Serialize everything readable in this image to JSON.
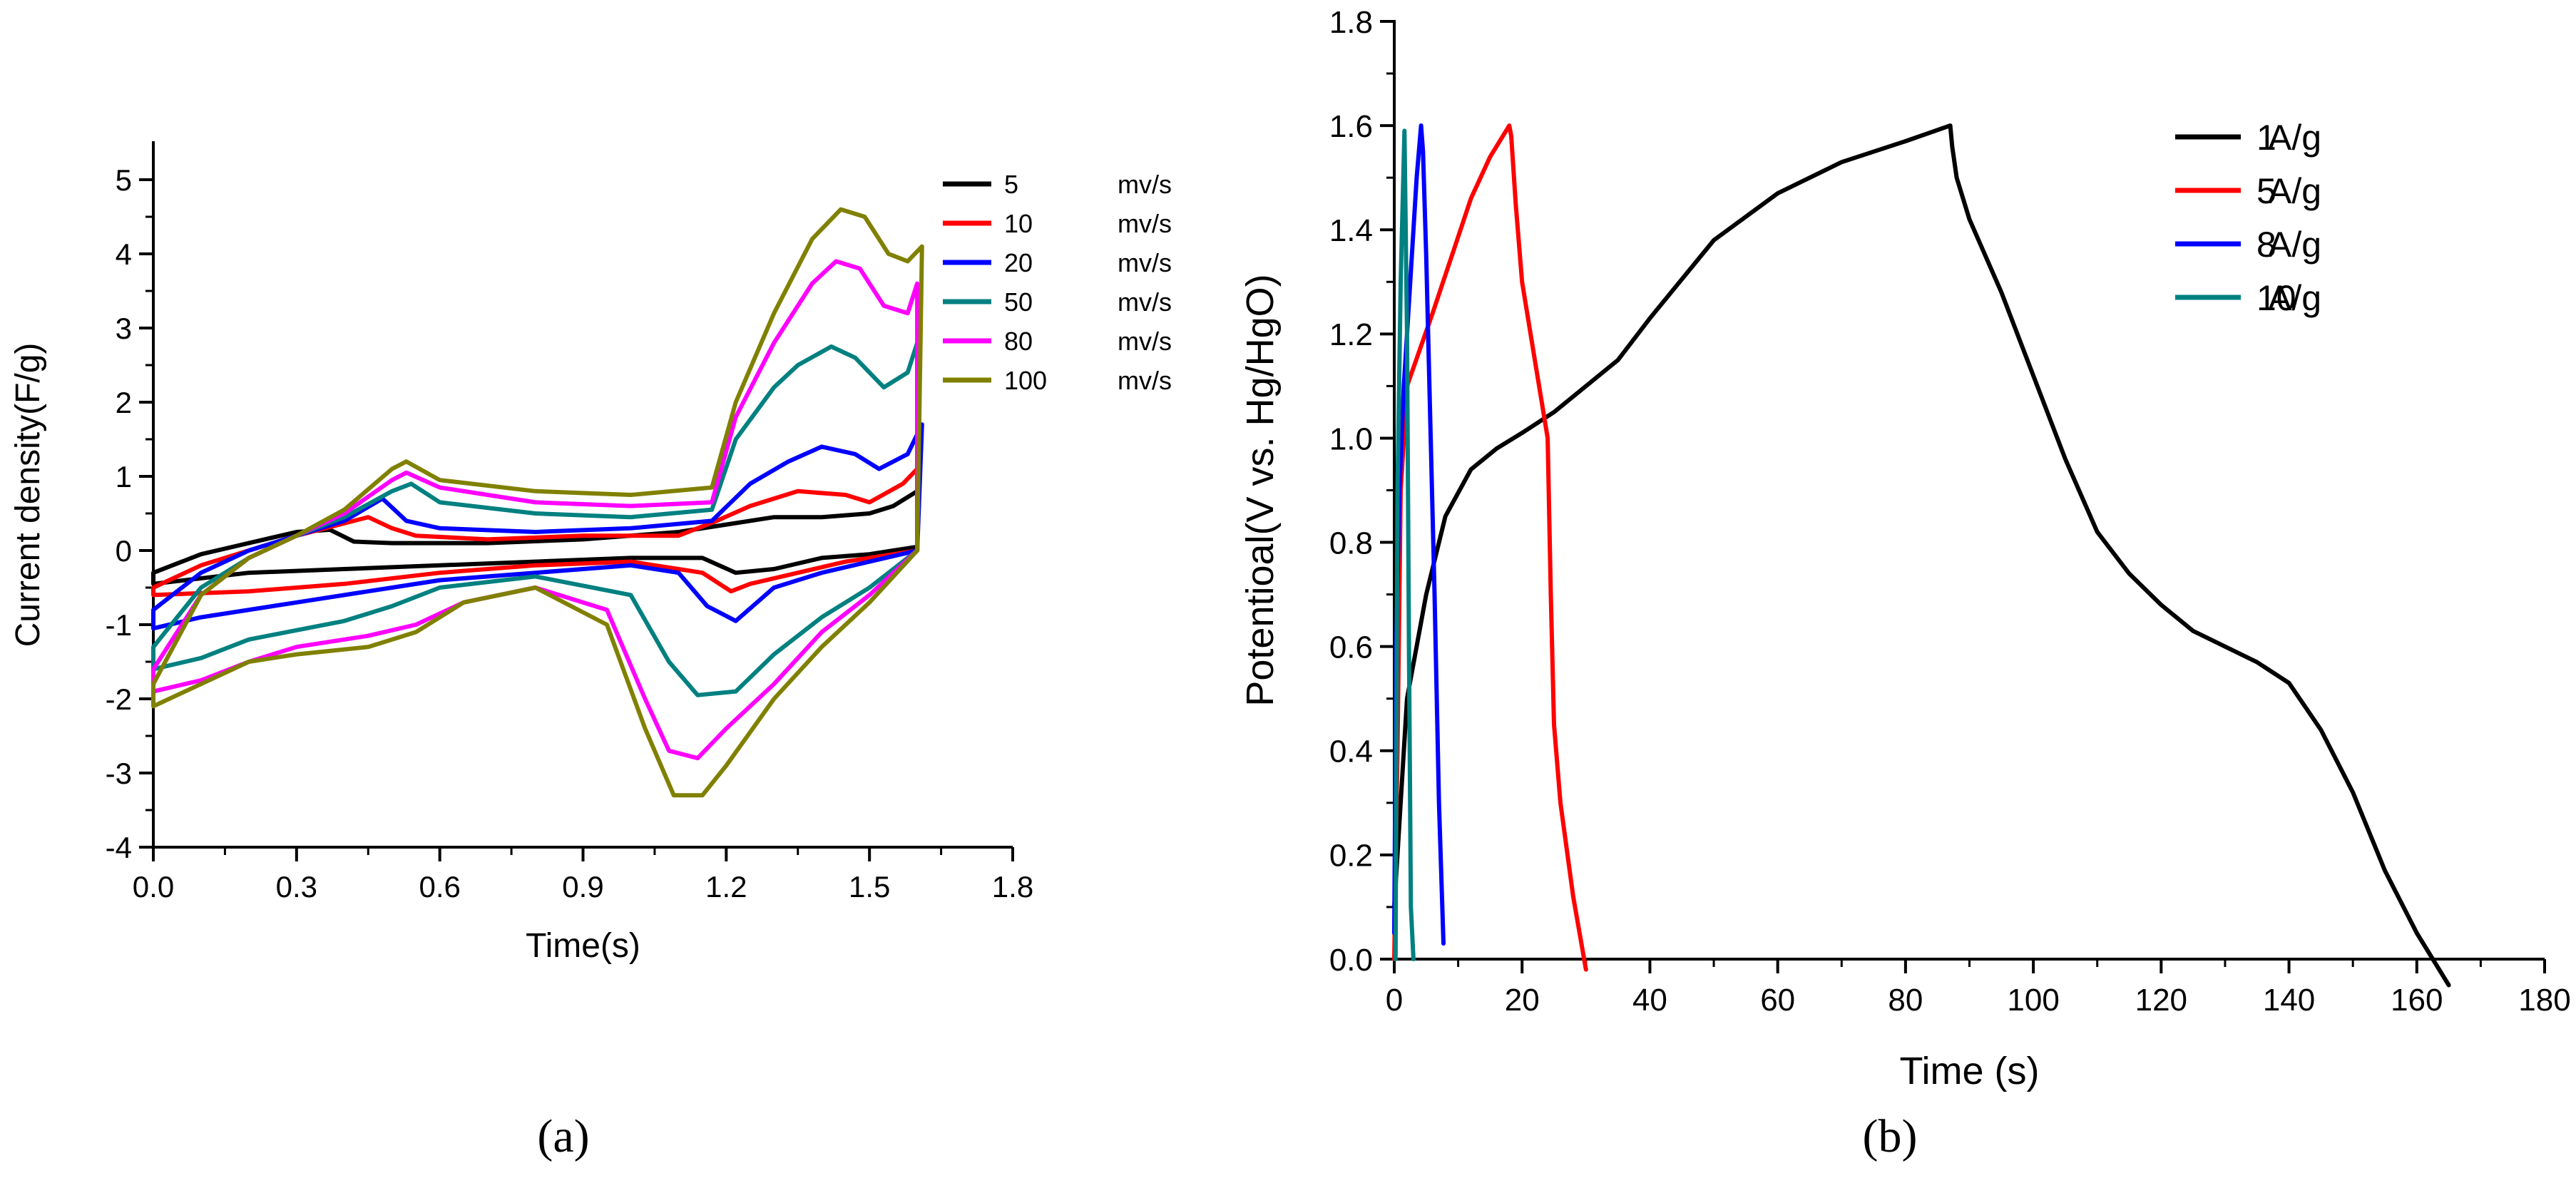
{
  "chart_data": [
    {
      "panel_label": "a",
      "type": "line",
      "title": "",
      "xlabel": "Time(s)",
      "ylabel": "Current density(F/g)",
      "xlim": [
        0.0,
        1.8
      ],
      "ylim": [
        -4,
        5.5
      ],
      "xticks": [
        0.0,
        0.3,
        0.6,
        0.9,
        1.2,
        1.5,
        1.8
      ],
      "xtick_labels": [
        "0.0",
        "0.3",
        "0.6",
        "0.9",
        "1.2",
        "1.5",
        "1.8"
      ],
      "yticks": [
        -4,
        -3,
        -2,
        -1,
        0,
        1,
        2,
        3,
        4,
        5
      ],
      "ytick_labels": [
        "-4",
        "-3",
        "-2",
        "-1",
        "0",
        "1",
        "2",
        "3",
        "4",
        "5"
      ],
      "grid": false,
      "legend_position": "top-right",
      "series": [
        {
          "name": "5",
          "unit": "mv/s",
          "color": "#000000",
          "x": [
            0.0,
            0.1,
            0.2,
            0.3,
            0.37,
            0.42,
            0.5,
            0.7,
            0.9,
            1.1,
            1.2,
            1.3,
            1.4,
            1.5,
            1.55,
            1.6,
            1.6,
            1.55,
            1.5,
            1.4,
            1.3,
            1.22,
            1.15,
            1.0,
            0.8,
            0.6,
            0.4,
            0.2,
            0.0,
            0.0
          ],
          "y": [
            -0.3,
            -0.05,
            0.1,
            0.25,
            0.28,
            0.12,
            0.1,
            0.1,
            0.15,
            0.25,
            0.35,
            0.45,
            0.45,
            0.5,
            0.6,
            0.8,
            0.05,
            0.0,
            -0.05,
            -0.1,
            -0.25,
            -0.3,
            -0.1,
            -0.1,
            -0.15,
            -0.2,
            -0.25,
            -0.3,
            -0.45,
            -0.3
          ]
        },
        {
          "name": "10",
          "unit": "mv/s",
          "color": "#ff0000",
          "x": [
            0.0,
            0.1,
            0.2,
            0.3,
            0.45,
            0.5,
            0.55,
            0.7,
            0.9,
            1.1,
            1.18,
            1.25,
            1.35,
            1.45,
            1.5,
            1.57,
            1.6,
            1.6,
            1.55,
            1.45,
            1.35,
            1.25,
            1.21,
            1.15,
            1.0,
            0.8,
            0.6,
            0.4,
            0.2,
            0.0,
            0.0
          ],
          "y": [
            -0.5,
            -0.2,
            0.0,
            0.2,
            0.45,
            0.3,
            0.2,
            0.15,
            0.2,
            0.2,
            0.4,
            0.6,
            0.8,
            0.75,
            0.65,
            0.9,
            1.1,
            0.0,
            -0.05,
            -0.15,
            -0.3,
            -0.45,
            -0.55,
            -0.3,
            -0.15,
            -0.2,
            -0.3,
            -0.45,
            -0.55,
            -0.6,
            -0.5
          ]
        },
        {
          "name": "20",
          "unit": "mv/s",
          "color": "#0000ff",
          "x": [
            0.0,
            0.1,
            0.2,
            0.3,
            0.4,
            0.48,
            0.53,
            0.6,
            0.8,
            1.0,
            1.17,
            1.25,
            1.33,
            1.4,
            1.47,
            1.52,
            1.58,
            1.61,
            1.6,
            1.5,
            1.4,
            1.3,
            1.22,
            1.16,
            1.1,
            1.0,
            0.8,
            0.6,
            0.5,
            0.3,
            0.1,
            0.0,
            0.0
          ],
          "y": [
            -0.8,
            -0.3,
            0.0,
            0.2,
            0.4,
            0.7,
            0.4,
            0.3,
            0.25,
            0.3,
            0.4,
            0.9,
            1.2,
            1.4,
            1.3,
            1.1,
            1.3,
            1.7,
            0.0,
            -0.15,
            -0.3,
            -0.5,
            -0.95,
            -0.75,
            -0.3,
            -0.2,
            -0.3,
            -0.4,
            -0.5,
            -0.7,
            -0.9,
            -1.05,
            -0.8
          ]
        },
        {
          "name": "50",
          "unit": "mv/s",
          "color": "#008080",
          "x": [
            0.0,
            0.1,
            0.2,
            0.3,
            0.4,
            0.5,
            0.54,
            0.6,
            0.8,
            1.0,
            1.17,
            1.22,
            1.3,
            1.35,
            1.42,
            1.47,
            1.53,
            1.58,
            1.6,
            1.6,
            1.5,
            1.4,
            1.3,
            1.22,
            1.14,
            1.08,
            1.0,
            0.8,
            0.6,
            0.5,
            0.4,
            0.2,
            0.1,
            0.0,
            0.0
          ],
          "y": [
            -1.3,
            -0.5,
            -0.1,
            0.2,
            0.45,
            0.8,
            0.9,
            0.65,
            0.5,
            0.45,
            0.55,
            1.5,
            2.2,
            2.5,
            2.75,
            2.6,
            2.2,
            2.4,
            2.8,
            0.0,
            -0.5,
            -0.9,
            -1.4,
            -1.9,
            -1.95,
            -1.5,
            -0.6,
            -0.35,
            -0.5,
            -0.75,
            -0.95,
            -1.2,
            -1.45,
            -1.6,
            -1.3
          ]
        },
        {
          "name": "80",
          "unit": "mv/s",
          "color": "#ff00ff",
          "x": [
            0.0,
            0.1,
            0.2,
            0.3,
            0.4,
            0.5,
            0.53,
            0.6,
            0.8,
            1.0,
            1.17,
            1.22,
            1.3,
            1.38,
            1.43,
            1.48,
            1.53,
            1.58,
            1.6,
            1.6,
            1.5,
            1.4,
            1.3,
            1.2,
            1.14,
            1.08,
            1.03,
            0.95,
            0.8,
            0.65,
            0.55,
            0.45,
            0.3,
            0.2,
            0.1,
            0.0,
            0.0
          ],
          "y": [
            -1.6,
            -0.6,
            -0.1,
            0.2,
            0.5,
            0.95,
            1.05,
            0.85,
            0.65,
            0.6,
            0.65,
            1.8,
            2.8,
            3.6,
            3.9,
            3.8,
            3.3,
            3.2,
            3.6,
            0.0,
            -0.6,
            -1.1,
            -1.8,
            -2.4,
            -2.8,
            -2.7,
            -2.0,
            -0.8,
            -0.5,
            -0.7,
            -1.0,
            -1.15,
            -1.3,
            -1.5,
            -1.75,
            -1.9,
            -1.6
          ]
        },
        {
          "name": "100",
          "unit": "mv/s",
          "color": "#808000",
          "x": [
            0.0,
            0.1,
            0.2,
            0.3,
            0.4,
            0.5,
            0.53,
            0.6,
            0.8,
            1.0,
            1.17,
            1.22,
            1.3,
            1.38,
            1.44,
            1.49,
            1.54,
            1.58,
            1.61,
            1.6,
            1.5,
            1.4,
            1.3,
            1.2,
            1.15,
            1.09,
            1.03,
            0.95,
            0.8,
            0.65,
            0.55,
            0.45,
            0.3,
            0.2,
            0.1,
            0.0,
            0.0
          ],
          "y": [
            -1.8,
            -0.6,
            -0.1,
            0.2,
            0.55,
            1.1,
            1.2,
            0.95,
            0.8,
            0.75,
            0.85,
            2.0,
            3.2,
            4.2,
            4.6,
            4.5,
            4.0,
            3.9,
            4.1,
            0.0,
            -0.7,
            -1.3,
            -2.0,
            -2.9,
            -3.3,
            -3.3,
            -2.4,
            -1.0,
            -0.5,
            -0.7,
            -1.1,
            -1.3,
            -1.4,
            -1.5,
            -1.8,
            -2.1,
            -1.8
          ]
        }
      ]
    },
    {
      "panel_label": "b",
      "type": "line",
      "title": "",
      "xlabel": "Time (s)",
      "ylabel": "Potentioal(V vs. Hg/HgO)",
      "xlim": [
        0,
        180
      ],
      "ylim": [
        0.0,
        1.8
      ],
      "xticks": [
        0,
        20,
        40,
        60,
        80,
        100,
        120,
        140,
        160,
        180
      ],
      "xtick_labels": [
        "0",
        "20",
        "40",
        "60",
        "80",
        "100",
        "120",
        "140",
        "160",
        "180"
      ],
      "yticks": [
        0.0,
        0.2,
        0.4,
        0.6,
        0.8,
        1.0,
        1.2,
        1.4,
        1.6,
        1.8
      ],
      "ytick_labels": [
        "0.0",
        "0.2",
        "0.4",
        "0.6",
        "0.8",
        "1.0",
        "1.2",
        "1.4",
        "1.6",
        "1.8"
      ],
      "grid": false,
      "legend_position": "top-right",
      "series": [
        {
          "name": "1",
          "unit": "A/g",
          "color": "#000000",
          "x": [
            0,
            2,
            5,
            8,
            12,
            16,
            20,
            25,
            30,
            35,
            40,
            50,
            60,
            70,
            80,
            87,
            87.3,
            88,
            90,
            95,
            100,
            105,
            110,
            115,
            120,
            125,
            130,
            135,
            140,
            145,
            150,
            155,
            160,
            165
          ],
          "y": [
            0.1,
            0.5,
            0.7,
            0.85,
            0.94,
            0.98,
            1.01,
            1.05,
            1.1,
            1.15,
            1.23,
            1.38,
            1.47,
            1.53,
            1.57,
            1.6,
            1.56,
            1.5,
            1.42,
            1.28,
            1.12,
            0.96,
            0.82,
            0.74,
            0.68,
            0.63,
            0.6,
            0.57,
            0.53,
            0.44,
            0.32,
            0.17,
            0.05,
            -0.05
          ]
        },
        {
          "name": "5",
          "unit": "A/g",
          "color": "#ff0000",
          "x": [
            0,
            0.5,
            1,
            2,
            4,
            6,
            9,
            12,
            15,
            18,
            18.3,
            19,
            20,
            22,
            24,
            24.5,
            25,
            26,
            28,
            30
          ],
          "y": [
            0.0,
            0.4,
            0.9,
            1.1,
            1.17,
            1.24,
            1.35,
            1.46,
            1.54,
            1.6,
            1.58,
            1.45,
            1.3,
            1.15,
            1.0,
            0.7,
            0.45,
            0.3,
            0.12,
            -0.02
          ]
        },
        {
          "name": "8",
          "unit": "A/g",
          "color": "#0000ff",
          "x": [
            0,
            0.3,
            0.8,
            1.5,
            2.5,
            3.5,
            4.2,
            4.5,
            5,
            5.7,
            6.3,
            7,
            7.7
          ],
          "y": [
            0.05,
            0.6,
            0.9,
            1.1,
            1.3,
            1.5,
            1.6,
            1.55,
            1.35,
            1.0,
            0.7,
            0.3,
            0.03
          ]
        },
        {
          "name": "10",
          "unit": "A/g",
          "color": "#008080",
          "x": [
            0.2,
            0.5,
            1,
            1.6,
            2,
            2.3,
            2.6,
            3
          ],
          "y": [
            0.0,
            0.9,
            1.3,
            1.59,
            1.2,
            0.6,
            0.1,
            0.0
          ]
        }
      ]
    }
  ],
  "captions": {
    "a": "(a)",
    "b": "(b)"
  }
}
